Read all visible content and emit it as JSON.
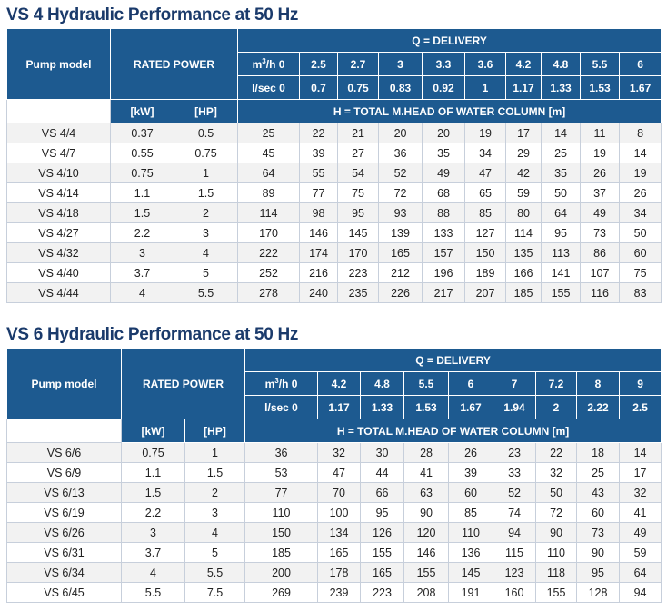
{
  "vs4": {
    "title": "VS 4 Hydraulic Performance at 50 Hz",
    "pump_model_label": "Pump model",
    "rated_power_label": "RATED POWER",
    "delivery_label": "Q = DELIVERY",
    "m3h_label_prefix": "m",
    "m3h_label_sup": "3",
    "m3h_label_suffix": "/h 0",
    "lsec_label": "l/sec 0",
    "kw_label": "[kW]",
    "hp_label": "[HP]",
    "head_label": "H = TOTAL M.HEAD OF WATER COLUMN [m]",
    "m3h": [
      "2.5",
      "2.7",
      "3",
      "3.3",
      "3.6",
      "4.2",
      "4.8",
      "5.5",
      "6"
    ],
    "lsec": [
      "0.7",
      "0.75",
      "0.83",
      "0.92",
      "1",
      "1.17",
      "1.33",
      "1.53",
      "1.67"
    ],
    "rows": [
      {
        "model": "VS 4/4",
        "kw": "0.37",
        "hp": "0.5",
        "h": [
          "25",
          "22",
          "21",
          "20",
          "20",
          "19",
          "17",
          "14",
          "11",
          "8"
        ]
      },
      {
        "model": "VS 4/7",
        "kw": "0.55",
        "hp": "0.75",
        "h": [
          "45",
          "39",
          "27",
          "36",
          "35",
          "34",
          "29",
          "25",
          "19",
          "14"
        ]
      },
      {
        "model": "VS 4/10",
        "kw": "0.75",
        "hp": "1",
        "h": [
          "64",
          "55",
          "54",
          "52",
          "49",
          "47",
          "42",
          "35",
          "26",
          "19"
        ]
      },
      {
        "model": "VS 4/14",
        "kw": "1.1",
        "hp": "1.5",
        "h": [
          "89",
          "77",
          "75",
          "72",
          "68",
          "65",
          "59",
          "50",
          "37",
          "26"
        ]
      },
      {
        "model": "VS 4/18",
        "kw": "1.5",
        "hp": "2",
        "h": [
          "114",
          "98",
          "95",
          "93",
          "88",
          "85",
          "80",
          "64",
          "49",
          "34"
        ]
      },
      {
        "model": "VS 4/27",
        "kw": "2.2",
        "hp": "3",
        "h": [
          "170",
          "146",
          "145",
          "139",
          "133",
          "127",
          "114",
          "95",
          "73",
          "50"
        ]
      },
      {
        "model": "VS 4/32",
        "kw": "3",
        "hp": "4",
        "h": [
          "222",
          "174",
          "170",
          "165",
          "157",
          "150",
          "135",
          "113",
          "86",
          "60"
        ]
      },
      {
        "model": "VS 4/40",
        "kw": "3.7",
        "hp": "5",
        "h": [
          "252",
          "216",
          "223",
          "212",
          "196",
          "189",
          "166",
          "141",
          "107",
          "75"
        ]
      },
      {
        "model": "VS 4/44",
        "kw": "4",
        "hp": "5.5",
        "h": [
          "278",
          "240",
          "235",
          "226",
          "217",
          "207",
          "185",
          "155",
          "116",
          "83"
        ]
      }
    ]
  },
  "vs6": {
    "title": "VS 6 Hydraulic Performance at 50 Hz",
    "pump_model_label": "Pump model",
    "rated_power_label": "RATED POWER",
    "delivery_label": "Q = DELIVERY",
    "m3h_label_prefix": "m",
    "m3h_label_sup": "3",
    "m3h_label_suffix": "/h 0",
    "lsec_label": "l/sec 0",
    "kw_label": "[kW]",
    "hp_label": "[HP]",
    "head_label": "H = TOTAL M.HEAD OF WATER COLUMN [m]",
    "m3h": [
      "4.2",
      "4.8",
      "5.5",
      "6",
      "7",
      "7.2",
      "8",
      "9"
    ],
    "lsec": [
      "1.17",
      "1.33",
      "1.53",
      "1.67",
      "1.94",
      "2",
      "2.22",
      "2.5"
    ],
    "rows": [
      {
        "model": "VS 6/6",
        "kw": "0.75",
        "hp": "1",
        "h": [
          "36",
          "32",
          "30",
          "28",
          "26",
          "23",
          "22",
          "18",
          "14"
        ]
      },
      {
        "model": "VS 6/9",
        "kw": "1.1",
        "hp": "1.5",
        "h": [
          "53",
          "47",
          "44",
          "41",
          "39",
          "33",
          "32",
          "25",
          "17"
        ]
      },
      {
        "model": "VS 6/13",
        "kw": "1.5",
        "hp": "2",
        "h": [
          "77",
          "70",
          "66",
          "63",
          "60",
          "52",
          "50",
          "43",
          "32"
        ]
      },
      {
        "model": "VS 6/19",
        "kw": "2.2",
        "hp": "3",
        "h": [
          "110",
          "100",
          "95",
          "90",
          "85",
          "74",
          "72",
          "60",
          "41"
        ]
      },
      {
        "model": "VS 6/26",
        "kw": "3",
        "hp": "4",
        "h": [
          "150",
          "134",
          "126",
          "120",
          "110",
          "94",
          "90",
          "73",
          "49"
        ]
      },
      {
        "model": "VS 6/31",
        "kw": "3.7",
        "hp": "5",
        "h": [
          "185",
          "165",
          "155",
          "146",
          "136",
          "115",
          "110",
          "90",
          "59"
        ]
      },
      {
        "model": "VS 6/34",
        "kw": "4",
        "hp": "5.5",
        "h": [
          "200",
          "178",
          "165",
          "155",
          "145",
          "123",
          "118",
          "95",
          "64"
        ]
      },
      {
        "model": "VS 6/45",
        "kw": "5.5",
        "hp": "7.5",
        "h": [
          "269",
          "239",
          "223",
          "208",
          "191",
          "160",
          "155",
          "128",
          "94"
        ]
      }
    ]
  }
}
